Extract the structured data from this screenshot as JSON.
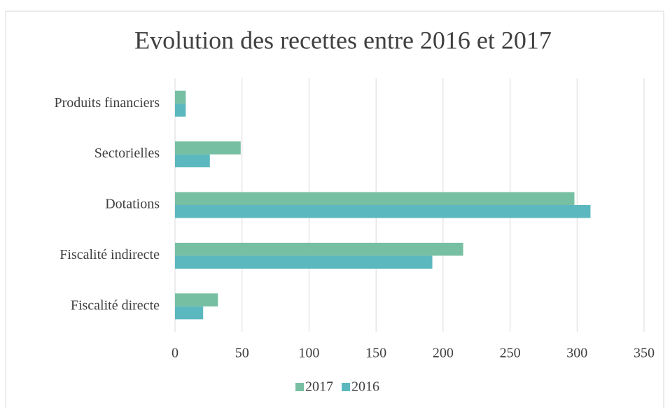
{
  "chart_data": {
    "type": "hbar",
    "title": "Evolution des recettes entre 2016 et 2017",
    "categories": [
      "Produits financiers",
      "Sectorielles",
      "Dotations",
      "Fiscalité indirecte",
      "Fiscalité directe"
    ],
    "series": [
      {
        "name": "2017",
        "color": "#77bfa3",
        "values": [
          8,
          49,
          298,
          215,
          32
        ]
      },
      {
        "name": "2016",
        "color": "#5cb8bf",
        "values": [
          8,
          26,
          310,
          192,
          21
        ]
      }
    ],
    "xlim": [
      0,
      350
    ],
    "xticks": [
      0,
      50,
      100,
      150,
      200,
      250,
      300,
      350
    ],
    "grid": true,
    "legend": "bottom"
  }
}
